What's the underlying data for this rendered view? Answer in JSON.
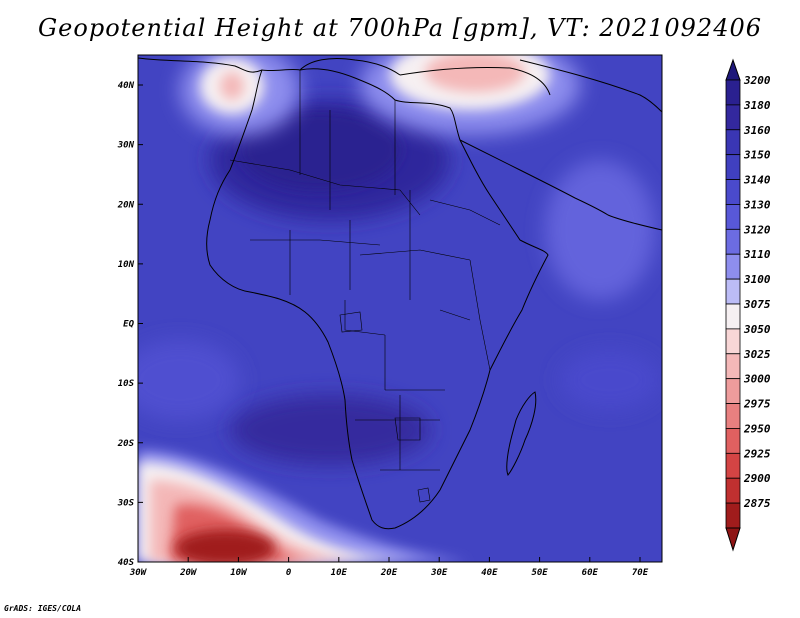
{
  "title": "Geopotential Height at 700hPa [gpm], VT: 2021092406",
  "credit": "GrADS: IGES/COLA",
  "map": {
    "lat_labels": [
      "40N",
      "30N",
      "20N",
      "10N",
      "EQ",
      "10S",
      "20S",
      "30S",
      "40S"
    ],
    "lon_labels": [
      "30W",
      "20W",
      "10W",
      "0",
      "10E",
      "20E",
      "30E",
      "40E",
      "50E",
      "60E",
      "70E"
    ]
  },
  "colorbar": {
    "levels": [
      "3200",
      "3180",
      "3160",
      "3150",
      "3140",
      "3130",
      "3120",
      "3110",
      "3100",
      "3075",
      "3050",
      "3025",
      "3000",
      "2975",
      "2950",
      "2925",
      "2900",
      "2875"
    ],
    "colors": [
      "#2a2090",
      "#33289e",
      "#3a36b4",
      "#4040c0",
      "#4a4acc",
      "#5858d8",
      "#6c6ce2",
      "#8e8eee",
      "#bcbcf6",
      "#f6f0f2",
      "#f8d6d6",
      "#f4b8b8",
      "#ee9c9c",
      "#e88080",
      "#e06060",
      "#d44444",
      "#c03030",
      "#a01c1c"
    ],
    "top_arrow_color": "#1e187a",
    "bottom_arrow_color": "#8e1414"
  }
}
